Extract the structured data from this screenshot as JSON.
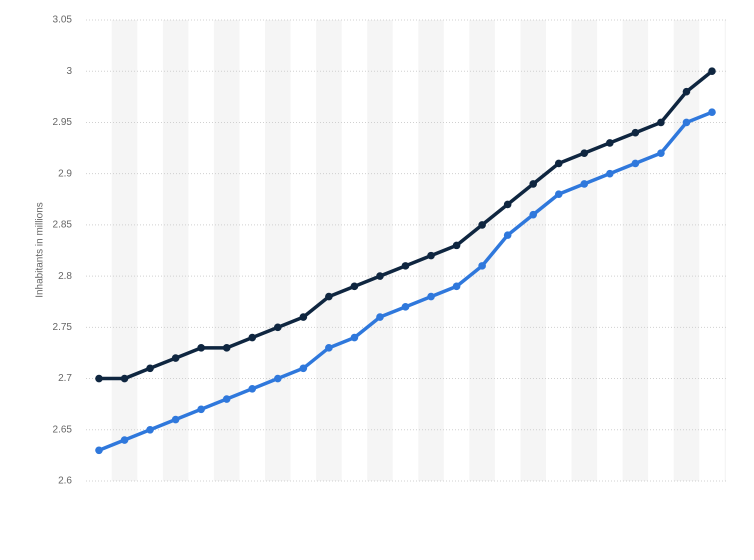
{
  "chart_data": {
    "type": "line",
    "y_label": "Inhabitants in millions",
    "categories": [
      null,
      null,
      null,
      null,
      null,
      null,
      null,
      null,
      null,
      null,
      null,
      null,
      null,
      null,
      null,
      null,
      null,
      null,
      null,
      null,
      null,
      null,
      null,
      null,
      null
    ],
    "series": [
      {
        "color": "#0f2640",
        "values": [
          2.7,
          2.7,
          2.71,
          2.72,
          2.73,
          2.73,
          2.74,
          2.75,
          2.76,
          2.78,
          2.79,
          2.8,
          2.81,
          2.82,
          2.83,
          2.85,
          2.87,
          2.89,
          2.91,
          2.92,
          2.93,
          2.94,
          2.95,
          2.98,
          3.0
        ]
      },
      {
        "color": "#2f78dc",
        "values": [
          2.63,
          2.64,
          2.65,
          2.66,
          2.67,
          2.68,
          2.69,
          2.7,
          2.71,
          2.73,
          2.74,
          2.76,
          2.77,
          2.78,
          2.79,
          2.81,
          2.84,
          2.86,
          2.88,
          2.89,
          2.9,
          2.91,
          2.92,
          2.95,
          2.96
        ]
      }
    ],
    "ylim": [
      2.6,
      3.05
    ],
    "yticks": [
      2.6,
      2.65,
      2.7,
      2.75,
      2.8,
      2.85,
      2.9,
      2.95,
      3,
      3.05
    ],
    "grid": true
  }
}
